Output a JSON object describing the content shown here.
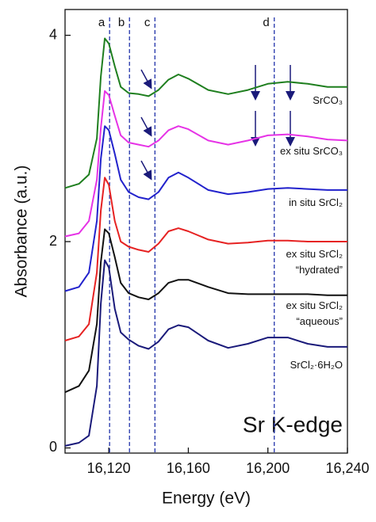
{
  "chart_data": {
    "type": "line",
    "x_label": "Energy (eV)",
    "y_label": "Absorbance (a.u.)",
    "annotation": "Sr K-edge",
    "x": [
      16098,
      16105,
      16110,
      16114,
      16116,
      16118,
      16120,
      16123,
      16126,
      16130,
      16135,
      16140,
      16145,
      16150,
      16155,
      16160,
      16170,
      16180,
      16190,
      16200,
      16210,
      16220,
      16230,
      16240
    ],
    "series": [
      {
        "name": "SrCO₃",
        "color": "#1f7f1f",
        "values": [
          2.52,
          2.56,
          2.65,
          3.0,
          3.6,
          3.97,
          3.92,
          3.7,
          3.5,
          3.44,
          3.43,
          3.41,
          3.47,
          3.57,
          3.62,
          3.58,
          3.47,
          3.43,
          3.47,
          3.53,
          3.55,
          3.53,
          3.5,
          3.5
        ]
      },
      {
        "name": "ex situ SrCO₃",
        "color": "#e633e6",
        "values": [
          2.05,
          2.08,
          2.2,
          2.6,
          3.1,
          3.46,
          3.42,
          3.22,
          3.03,
          2.96,
          2.94,
          2.92,
          2.98,
          3.08,
          3.12,
          3.09,
          2.98,
          2.94,
          2.98,
          3.03,
          3.04,
          3.02,
          2.99,
          2.98
        ]
      },
      {
        "name": "in situ SrCl₂",
        "color": "#2222cc",
        "values": [
          1.52,
          1.56,
          1.7,
          2.2,
          2.8,
          3.12,
          3.08,
          2.85,
          2.6,
          2.48,
          2.43,
          2.41,
          2.48,
          2.62,
          2.67,
          2.62,
          2.5,
          2.46,
          2.48,
          2.51,
          2.52,
          2.51,
          2.5,
          2.5
        ]
      },
      {
        "name": "ex situ SrCl₂\n“hydrated”",
        "color": "#e62222",
        "values": [
          1.04,
          1.08,
          1.2,
          1.7,
          2.3,
          2.62,
          2.55,
          2.2,
          2.0,
          1.95,
          1.92,
          1.9,
          1.98,
          2.1,
          2.13,
          2.1,
          2.02,
          1.98,
          1.99,
          2.01,
          2.01,
          2.0,
          2.0,
          2.0
        ]
      },
      {
        "name": "ex situ SrCl₂\n“aqueous”",
        "color": "#111111",
        "values": [
          0.54,
          0.6,
          0.75,
          1.2,
          1.8,
          2.12,
          2.08,
          1.85,
          1.6,
          1.5,
          1.46,
          1.44,
          1.5,
          1.6,
          1.63,
          1.63,
          1.56,
          1.5,
          1.49,
          1.49,
          1.49,
          1.49,
          1.48,
          1.48
        ]
      },
      {
        "name": "SrCl₂·6H₂O",
        "color": "#1a1a7a",
        "values": [
          0.02,
          0.05,
          0.12,
          0.6,
          1.4,
          1.82,
          1.75,
          1.35,
          1.12,
          1.05,
          0.99,
          0.96,
          1.03,
          1.15,
          1.19,
          1.17,
          1.04,
          0.97,
          1.01,
          1.07,
          1.07,
          1.01,
          0.98,
          0.98
        ]
      }
    ],
    "vlines": [
      {
        "x": 16120.4,
        "label": "a"
      },
      {
        "x": 16130.4,
        "label": "b"
      },
      {
        "x": 16143.2,
        "label": "c"
      },
      {
        "x": 16203.2,
        "label": "d"
      }
    ],
    "vline_color": "#2233aa",
    "xlim": [
      16098,
      16240
    ],
    "ylim": [
      -0.05,
      4.25
    ],
    "xticks": [
      {
        "value": 16120,
        "label": "16,120"
      },
      {
        "value": 16160,
        "label": "16,160"
      },
      {
        "value": 16200,
        "label": "16,200"
      },
      {
        "value": 16240,
        "label": "16,240"
      }
    ],
    "yticks": [
      0,
      2,
      4
    ]
  }
}
